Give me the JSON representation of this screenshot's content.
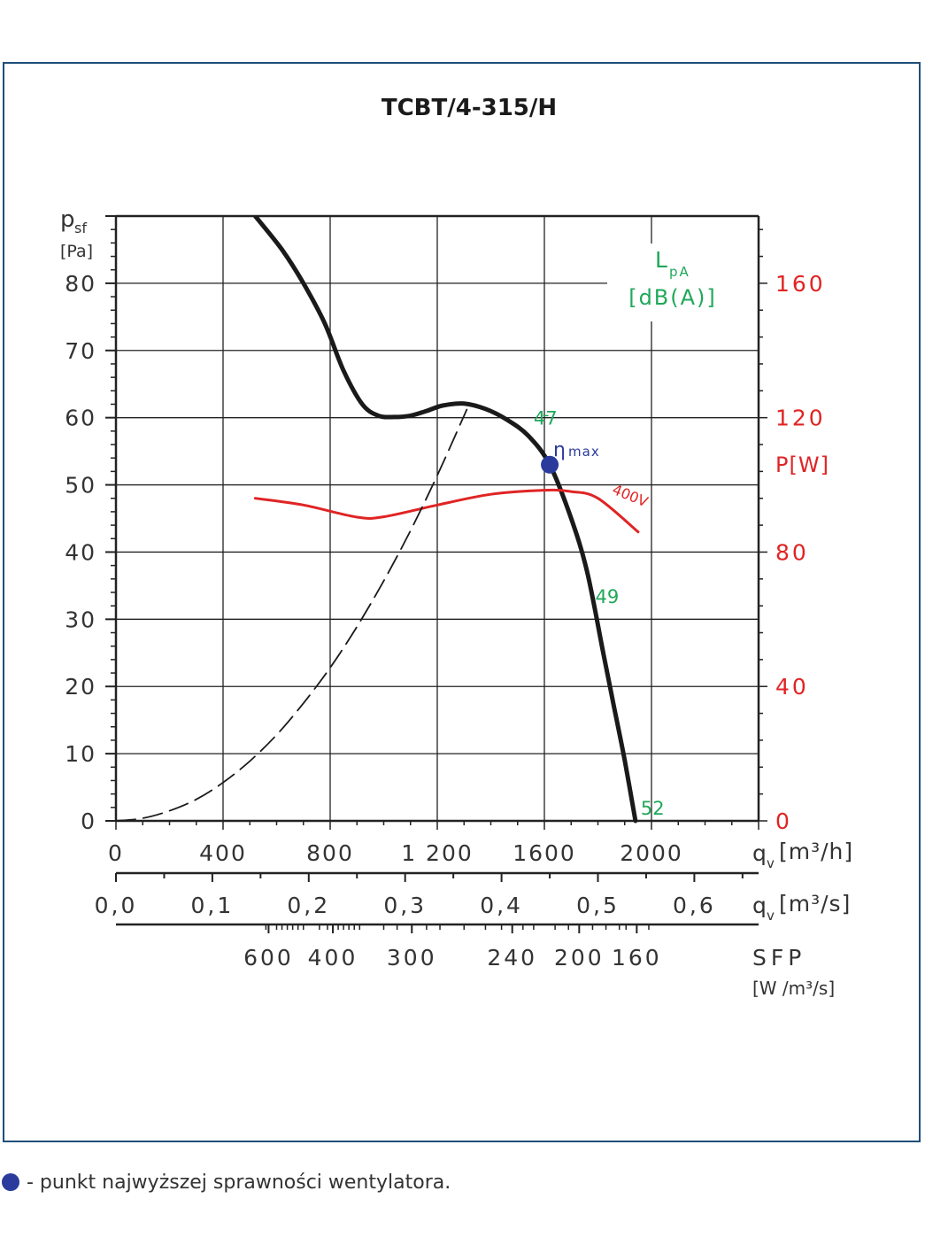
{
  "chart_data": {
    "type": "line",
    "title": "TCBT/4-315/H",
    "y_label": {
      "symbol": "p",
      "sub": "sf",
      "unit": "[Pa]"
    },
    "y_ticks": [
      0,
      10,
      20,
      30,
      40,
      50,
      60,
      70,
      80
    ],
    "ylim": [
      0,
      90
    ],
    "x_label": {
      "symbol": "q",
      "sub": "v",
      "unit": "[m³/h]"
    },
    "x_ticks": [
      "0",
      "400",
      "800",
      "1 200",
      "1600",
      "2000"
    ],
    "x_tick_values": [
      0,
      400,
      800,
      1200,
      1600,
      2000
    ],
    "xlim": [
      0,
      2400
    ],
    "x2_label": {
      "symbol": "q",
      "sub": "v",
      "unit": "[m³/s]"
    },
    "x2_ticks": [
      "0,0",
      "0,1",
      "0,2",
      "0,3",
      "0,4",
      "0,5",
      "0,6"
    ],
    "x2_tick_values": [
      0,
      0.1,
      0.2,
      0.3,
      0.4,
      0.5,
      0.6
    ],
    "sfp_label": "SFP",
    "sfp_unit": "[W /m³/s]",
    "sfp_ticks": [
      "600",
      "400",
      "300",
      "240",
      "200",
      "160"
    ],
    "sfp_tick_qv": [
      570,
      810,
      1105,
      1480,
      1730,
      1945
    ],
    "power_label": "P[W]",
    "power_ticks": [
      0,
      40,
      80,
      120,
      160
    ],
    "power_lim": [
      0,
      180
    ],
    "lpa_label": {
      "symbol": "L",
      "sub": "pA",
      "unit": "[dB(A)]"
    },
    "series": [
      {
        "name": "fan-curve",
        "color": "#1a1a1a",
        "x": [
          520,
          620,
          700,
          780,
          850,
          920,
          980,
          1040,
          1100,
          1160,
          1220,
          1300,
          1380,
          1460,
          1540,
          1620,
          1700,
          1760,
          1820,
          1860,
          1900,
          1940
        ],
        "y": [
          90,
          85,
          80,
          74,
          67,
          62,
          60.3,
          60.1,
          60.3,
          61,
          61.8,
          62.1,
          61.3,
          59.7,
          57.3,
          53,
          45,
          37,
          25,
          17,
          9,
          0
        ]
      },
      {
        "name": "400V",
        "color": "#e02424",
        "axis": "power",
        "x": [
          520,
          700,
          900,
          1000,
          1200,
          1400,
          1600,
          1700,
          1800,
          1950
        ],
        "y": [
          96,
          94,
          90.4,
          90.5,
          94,
          97.2,
          98.4,
          98,
          96,
          86
        ]
      },
      {
        "name": "system-curve",
        "color": "#1a1a1a",
        "dashed": true,
        "x": [
          0,
          100,
          200,
          300,
          400,
          500,
          600,
          700,
          800,
          900,
          1000,
          1100,
          1200,
          1310
        ],
        "y": [
          0,
          0.4,
          1.5,
          3.2,
          5.7,
          8.9,
          12.8,
          17.5,
          22.8,
          28.9,
          35.7,
          43.2,
          51.4,
          61.2
        ]
      }
    ],
    "lpa_points": [
      {
        "label": "47",
        "x": 1560,
        "y": 60
      },
      {
        "label": "49",
        "x": 1790,
        "y": 33.5
      },
      {
        "label": "52",
        "x": 1960,
        "y": 2
      }
    ],
    "eta_max": {
      "label": "η",
      "sub": "max",
      "x": 1620,
      "y": 53
    },
    "series_label_400v": "400V",
    "colors": {
      "frame": "#1f4e79",
      "fan": "#1a1a1a",
      "power": "#e02424",
      "lpa": "#1fa85a",
      "eta": "#2a3b9c"
    }
  },
  "legend": {
    "text": "- punkt najwyższej sprawności wentylatora."
  }
}
